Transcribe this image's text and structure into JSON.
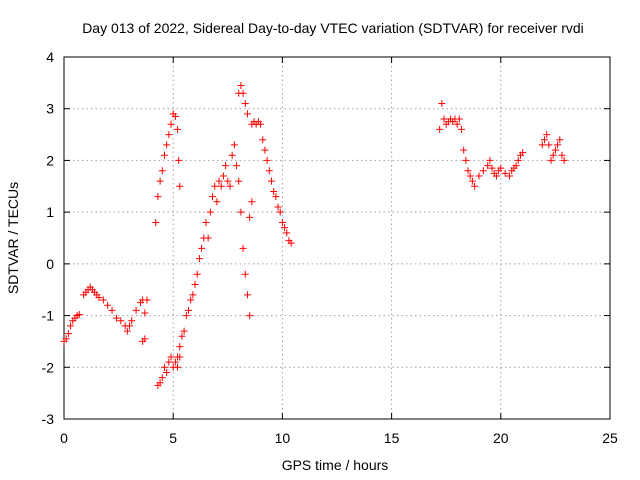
{
  "chart_data": {
    "type": "scatter",
    "title": "Day 013 of 2022, Sidereal Day-to-day VTEC variation (SDTVAR) for receiver rvdi",
    "xlabel": "GPS time / hours",
    "ylabel": "SDTVAR / TECUs",
    "xlim": [
      0,
      25
    ],
    "ylim": [
      -3,
      4
    ],
    "xticks": [
      0,
      5,
      10,
      15,
      20,
      25
    ],
    "yticks": [
      -3,
      -2,
      -1,
      0,
      1,
      2,
      3,
      4
    ],
    "grid": true,
    "marker": "+",
    "color": "#ff0000",
    "series": [
      {
        "name": "SDTVAR",
        "points": [
          [
            0.0,
            -1.5
          ],
          [
            0.1,
            -1.45
          ],
          [
            0.2,
            -1.35
          ],
          [
            0.3,
            -1.2
          ],
          [
            0.4,
            -1.1
          ],
          [
            0.5,
            -1.05
          ],
          [
            0.6,
            -1.0
          ],
          [
            0.7,
            -0.98
          ],
          [
            0.9,
            -0.6
          ],
          [
            1.0,
            -0.55
          ],
          [
            1.1,
            -0.5
          ],
          [
            1.2,
            -0.45
          ],
          [
            1.3,
            -0.5
          ],
          [
            1.4,
            -0.55
          ],
          [
            1.5,
            -0.6
          ],
          [
            1.6,
            -0.65
          ],
          [
            1.8,
            -0.7
          ],
          [
            2.0,
            -0.8
          ],
          [
            2.2,
            -0.9
          ],
          [
            2.4,
            -1.05
          ],
          [
            2.6,
            -1.1
          ],
          [
            2.8,
            -1.2
          ],
          [
            2.9,
            -1.3
          ],
          [
            3.0,
            -1.2
          ],
          [
            3.1,
            -1.1
          ],
          [
            3.3,
            -0.9
          ],
          [
            3.5,
            -0.75
          ],
          [
            3.6,
            -0.7
          ],
          [
            3.7,
            -0.95
          ],
          [
            3.8,
            -0.7
          ],
          [
            3.6,
            -1.5
          ],
          [
            3.7,
            -1.45
          ],
          [
            4.2,
            0.8
          ],
          [
            4.3,
            1.3
          ],
          [
            4.4,
            1.6
          ],
          [
            4.5,
            1.8
          ],
          [
            4.6,
            2.1
          ],
          [
            4.7,
            2.3
          ],
          [
            4.8,
            2.5
          ],
          [
            4.9,
            2.7
          ],
          [
            5.0,
            2.9
          ],
          [
            5.1,
            2.85
          ],
          [
            5.2,
            2.6
          ],
          [
            5.25,
            2.0
          ],
          [
            5.3,
            1.5
          ],
          [
            5.3,
            -1.8
          ],
          [
            5.2,
            -2.0
          ],
          [
            4.3,
            -2.35
          ],
          [
            4.4,
            -2.3
          ],
          [
            4.5,
            -2.2
          ],
          [
            4.6,
            -2.0
          ],
          [
            4.7,
            -2.1
          ],
          [
            4.8,
            -1.9
          ],
          [
            4.9,
            -1.8
          ],
          [
            5.0,
            -2.0
          ],
          [
            5.1,
            -1.9
          ],
          [
            5.2,
            -1.8
          ],
          [
            5.3,
            -1.6
          ],
          [
            5.4,
            -1.4
          ],
          [
            5.5,
            -1.3
          ],
          [
            5.6,
            -1.0
          ],
          [
            5.7,
            -0.9
          ],
          [
            5.8,
            -0.7
          ],
          [
            5.9,
            -0.6
          ],
          [
            6.0,
            -0.4
          ],
          [
            6.1,
            -0.2
          ],
          [
            6.2,
            0.1
          ],
          [
            6.3,
            0.3
          ],
          [
            6.4,
            0.5
          ],
          [
            6.5,
            0.8
          ],
          [
            6.6,
            0.5
          ],
          [
            6.7,
            1.0
          ],
          [
            6.8,
            1.3
          ],
          [
            6.9,
            1.5
          ],
          [
            7.0,
            1.2
          ],
          [
            7.1,
            1.6
          ],
          [
            7.2,
            1.5
          ],
          [
            7.3,
            1.7
          ],
          [
            7.4,
            1.9
          ],
          [
            7.5,
            1.6
          ],
          [
            7.6,
            1.5
          ],
          [
            7.7,
            2.1
          ],
          [
            7.8,
            2.3
          ],
          [
            7.9,
            1.9
          ],
          [
            8.0,
            3.3
          ],
          [
            8.1,
            3.45
          ],
          [
            8.2,
            3.3
          ],
          [
            8.3,
            3.1
          ],
          [
            8.4,
            2.9
          ],
          [
            8.0,
            1.6
          ],
          [
            8.1,
            1.0
          ],
          [
            8.2,
            0.3
          ],
          [
            8.3,
            -0.2
          ],
          [
            8.4,
            -0.6
          ],
          [
            8.5,
            -1.0
          ],
          [
            8.5,
            0.9
          ],
          [
            8.6,
            1.2
          ],
          [
            8.6,
            2.7
          ],
          [
            8.7,
            2.75
          ],
          [
            8.8,
            2.7
          ],
          [
            8.9,
            2.75
          ],
          [
            9.0,
            2.7
          ],
          [
            9.1,
            2.4
          ],
          [
            9.2,
            2.2
          ],
          [
            9.3,
            2.0
          ],
          [
            9.4,
            1.8
          ],
          [
            9.5,
            1.6
          ],
          [
            9.6,
            1.4
          ],
          [
            9.7,
            1.3
          ],
          [
            9.8,
            1.1
          ],
          [
            9.9,
            1.0
          ],
          [
            10.0,
            0.8
          ],
          [
            10.1,
            0.7
          ],
          [
            10.2,
            0.6
          ],
          [
            10.3,
            0.45
          ],
          [
            10.4,
            0.4
          ],
          [
            17.2,
            2.6
          ],
          [
            17.3,
            3.1
          ],
          [
            17.4,
            2.8
          ],
          [
            17.5,
            2.7
          ],
          [
            17.6,
            2.75
          ],
          [
            17.7,
            2.8
          ],
          [
            17.8,
            2.75
          ],
          [
            17.9,
            2.8
          ],
          [
            18.0,
            2.7
          ],
          [
            18.1,
            2.8
          ],
          [
            18.2,
            2.6
          ],
          [
            18.3,
            2.2
          ],
          [
            18.4,
            2.0
          ],
          [
            18.5,
            1.8
          ],
          [
            18.6,
            1.7
          ],
          [
            18.7,
            1.6
          ],
          [
            18.8,
            1.5
          ],
          [
            19.0,
            1.7
          ],
          [
            19.2,
            1.8
          ],
          [
            19.4,
            1.9
          ],
          [
            19.5,
            2.0
          ],
          [
            19.6,
            1.85
          ],
          [
            19.7,
            1.75
          ],
          [
            19.8,
            1.7
          ],
          [
            19.9,
            1.8
          ],
          [
            20.0,
            1.85
          ],
          [
            20.2,
            1.75
          ],
          [
            20.4,
            1.7
          ],
          [
            20.5,
            1.8
          ],
          [
            20.6,
            1.85
          ],
          [
            20.7,
            1.9
          ],
          [
            20.8,
            2.0
          ],
          [
            20.9,
            2.1
          ],
          [
            21.0,
            2.15
          ],
          [
            21.9,
            2.3
          ],
          [
            22.0,
            2.4
          ],
          [
            22.1,
            2.5
          ],
          [
            22.2,
            2.3
          ],
          [
            22.3,
            2.0
          ],
          [
            22.4,
            2.1
          ],
          [
            22.5,
            2.2
          ],
          [
            22.6,
            2.3
          ],
          [
            22.7,
            2.4
          ],
          [
            22.8,
            2.1
          ],
          [
            22.9,
            2.0
          ]
        ]
      }
    ]
  }
}
